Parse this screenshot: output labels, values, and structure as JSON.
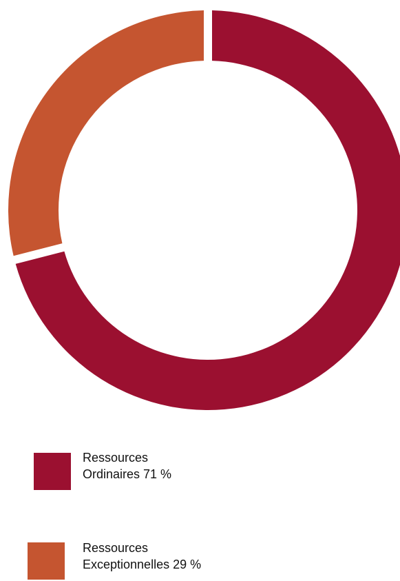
{
  "chart_data": {
    "type": "pie",
    "variant": "donut",
    "slices": [
      {
        "name_line1": "Ressources",
        "name_line2": "Ordinaires 71 %",
        "value": 71,
        "color": "#9b1030"
      },
      {
        "name_line1": "Ressources",
        "name_line2": "Exceptionnelles 29 %",
        "value": 29,
        "color": "#c55530"
      }
    ]
  }
}
